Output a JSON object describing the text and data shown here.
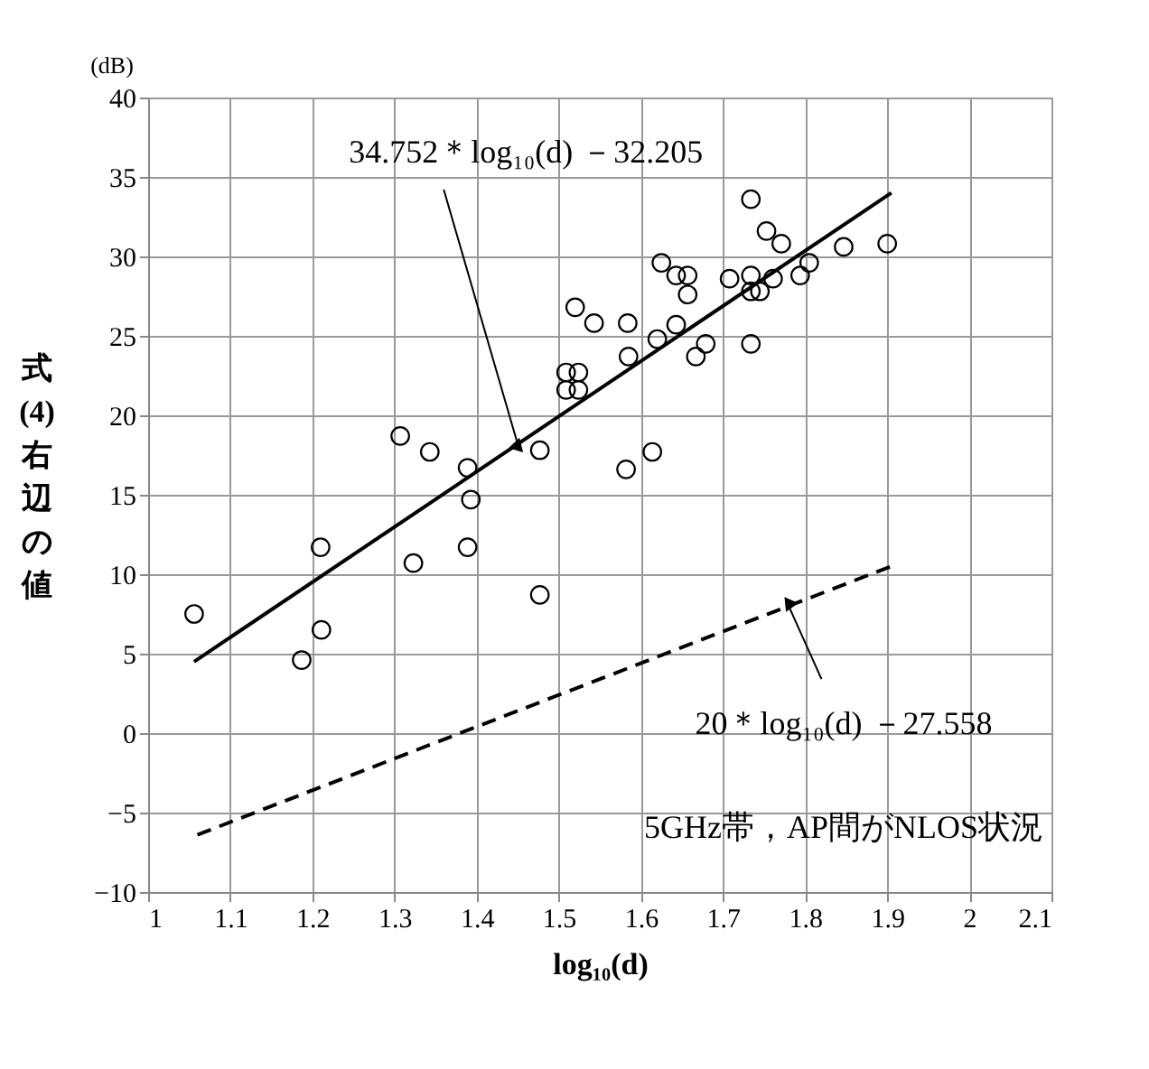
{
  "chart_data": {
    "type": "scatter",
    "xlabel": "log₁₀(d)",
    "ylabel": "式(4)右辺の値",
    "xlim": [
      1,
      2.1
    ],
    "xticks": [
      1,
      1.1,
      1.2,
      1.3,
      1.4,
      1.5,
      1.6,
      1.7,
      1.8,
      1.9,
      2,
      2.1
    ],
    "ylim": [
      -10,
      40
    ],
    "yticks": [
      -10,
      -5,
      0,
      5,
      10,
      15,
      20,
      25,
      30,
      35,
      40
    ],
    "grid": true,
    "series": [
      {
        "marker": "circle",
        "color": "#000000",
        "x": [
          1.056,
          1.187,
          1.211,
          1.21,
          1.307,
          1.343,
          1.389,
          1.393,
          1.389,
          1.323,
          1.477,
          1.477,
          1.734,
          1.753,
          1.771,
          1.805,
          1.794,
          1.847,
          1.9,
          1.625,
          1.643,
          1.657,
          1.657,
          1.708,
          1.734,
          1.734,
          1.745,
          1.761,
          1.52,
          1.543,
          1.584,
          1.643,
          1.62,
          1.585,
          1.679,
          1.667,
          1.734,
          1.509,
          1.524,
          1.509,
          1.524,
          1.614,
          1.582
        ],
        "values": [
          7.5,
          4.6,
          6.5,
          11.7,
          18.7,
          17.7,
          16.7,
          14.7,
          11.7,
          10.7,
          17.8,
          8.7,
          33.6,
          31.6,
          30.8,
          29.6,
          28.8,
          30.6,
          30.8,
          29.6,
          28.8,
          28.8,
          27.6,
          28.6,
          28.8,
          27.8,
          27.8,
          28.6,
          26.8,
          25.8,
          25.8,
          25.7,
          24.8,
          23.7,
          24.5,
          23.7,
          24.5,
          22.7,
          22.7,
          21.6,
          21.6,
          17.7,
          16.6
        ]
      },
      {
        "type": "line",
        "line_style": "solid",
        "color": "#000000",
        "x": [
          1.056,
          1.905
        ],
        "values": [
          4.5,
          34.0
        ]
      },
      {
        "type": "line",
        "line_style": "dashed",
        "color": "#000000",
        "x": [
          1.06,
          1.905
        ],
        "values": [
          -6.4,
          10.5
        ]
      }
    ],
    "annotations": [
      {
        "text": "34.752＊log₁₀(d) －32.205",
        "x": 1.45,
        "y": 18.2
      },
      {
        "text": "20＊log₁₀(d) －27.558",
        "x": 1.78,
        "y": 8.0
      },
      "5GHz帯，AP間がNLOS状況",
      "(dB)"
    ]
  }
}
